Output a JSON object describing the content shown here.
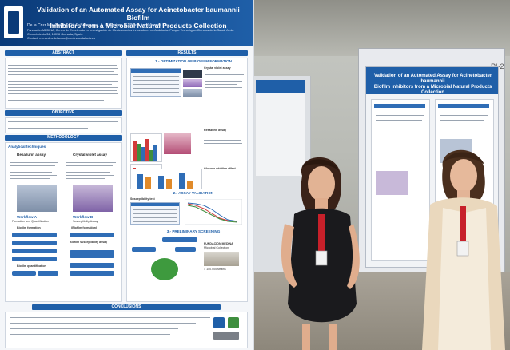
{
  "poster": {
    "title_line1": "Validation of an Automated Assay for Acinetobacter baumannii Biofilm",
    "title_line2": "Inhibitors from a Microbial Natural Products Collection",
    "authors": "De la Cruz M.¹, Martos Cl², P. Sánchez ¹, A. Melguizo¹, C. Díaz¹ and Vicente F¹",
    "affiliation": "Fundación MEDINA, Centro de Excelencia en Investigación de Medicamentos Innovadores en Andalucía. Parque Tecnológico Ciencias de la Salud, Avda. Conocimiento 34, 18016 Granada, Spain.",
    "contact": "Contact: mercedes.delacruz@medinaandalucia.es",
    "sections": {
      "abstract": "ABSTRACT",
      "objective": "OBJECTIVE",
      "methodology": "METHODOLOGY",
      "results": "RESULTS",
      "conclusions": "CONCLUSIONS"
    },
    "results_sub": {
      "r1": "1.- OPTIMIZATION OF BIOFILM FORMATION",
      "r2": "2.- ASSAY VALIDATION",
      "r3": "3.- PRELIMINARY SCREENING"
    },
    "method": {
      "analytical": "Analytical techniques",
      "resazurin": "Resazurin assay",
      "crystal": "Crystal violet assay",
      "workflow_a": "Workflow A",
      "workflow_a_sub": "Formation and Quantification",
      "workflow_b": "Workflow B",
      "workflow_b_sub": "Susceptibility Assay",
      "biofilm_formation": "Biofilm formation",
      "biofilm_formation_b": "(Biofilm formation)",
      "biofilm_quant": "Biofilm quantification",
      "biofilm_susc": "Biofilm susceptibility assay"
    },
    "results_labels": {
      "crystal_violet_assay": "Crystal violet assay",
      "resazurin_assay": "Resazurin assay",
      "glucose_effect": "Glucose addition effect",
      "susceptibility_test": "Susceptibility test"
    },
    "screening": {
      "fundacion": "FUNDACION MEDINA",
      "collection": "Microbial Collection",
      "extracts": "> 150.000 strains"
    }
  },
  "photo": {
    "panel_label": "PI-2",
    "poster2_title_line1": "Validation of an Automated Assay for Acinetobacter baumannii",
    "poster2_title_line2": "Biofilm Inhibitors from a Microbial Natural Products Collection"
  }
}
